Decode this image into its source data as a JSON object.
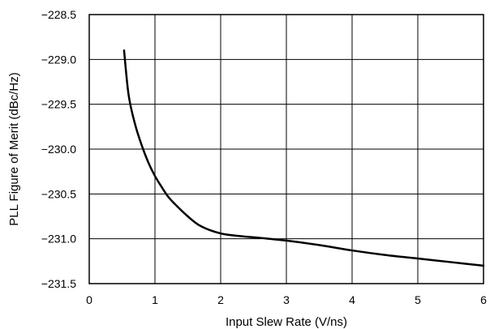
{
  "chart_data": {
    "type": "line",
    "title": "",
    "xlabel": "Input Slew Rate (V/ns)",
    "ylabel": "PLL Figure of Merit (dBc/Hz)",
    "xlim": [
      0,
      6
    ],
    "ylim": [
      -231.5,
      -228.5
    ],
    "x_ticks": [
      0,
      1,
      2,
      3,
      4,
      5,
      6
    ],
    "y_ticks": [
      -228.5,
      -229.0,
      -229.5,
      -230.0,
      -230.5,
      -231.0,
      -231.5
    ],
    "x_tick_labels": [
      "0",
      "1",
      "2",
      "3",
      "4",
      "5",
      "6"
    ],
    "y_tick_labels": [
      "−228.5",
      "−229.0",
      "−229.5",
      "−230.0",
      "−230.5",
      "−231.0",
      "−231.5"
    ],
    "grid": true,
    "series": [
      {
        "color": "#000000",
        "x": [
          0.53,
          0.6,
          0.7,
          0.8,
          0.9,
          1.0,
          1.1,
          1.2,
          1.3,
          1.5,
          1.7,
          2.0,
          2.3,
          2.6,
          3.0,
          3.5,
          4.0,
          4.5,
          5.0,
          5.5,
          6.0
        ],
        "y": [
          -228.9,
          -229.4,
          -229.73,
          -229.96,
          -230.15,
          -230.3,
          -230.42,
          -230.53,
          -230.61,
          -230.75,
          -230.86,
          -230.94,
          -230.97,
          -230.99,
          -231.02,
          -231.07,
          -231.13,
          -231.18,
          -231.22,
          -231.26,
          -231.3
        ]
      }
    ]
  }
}
